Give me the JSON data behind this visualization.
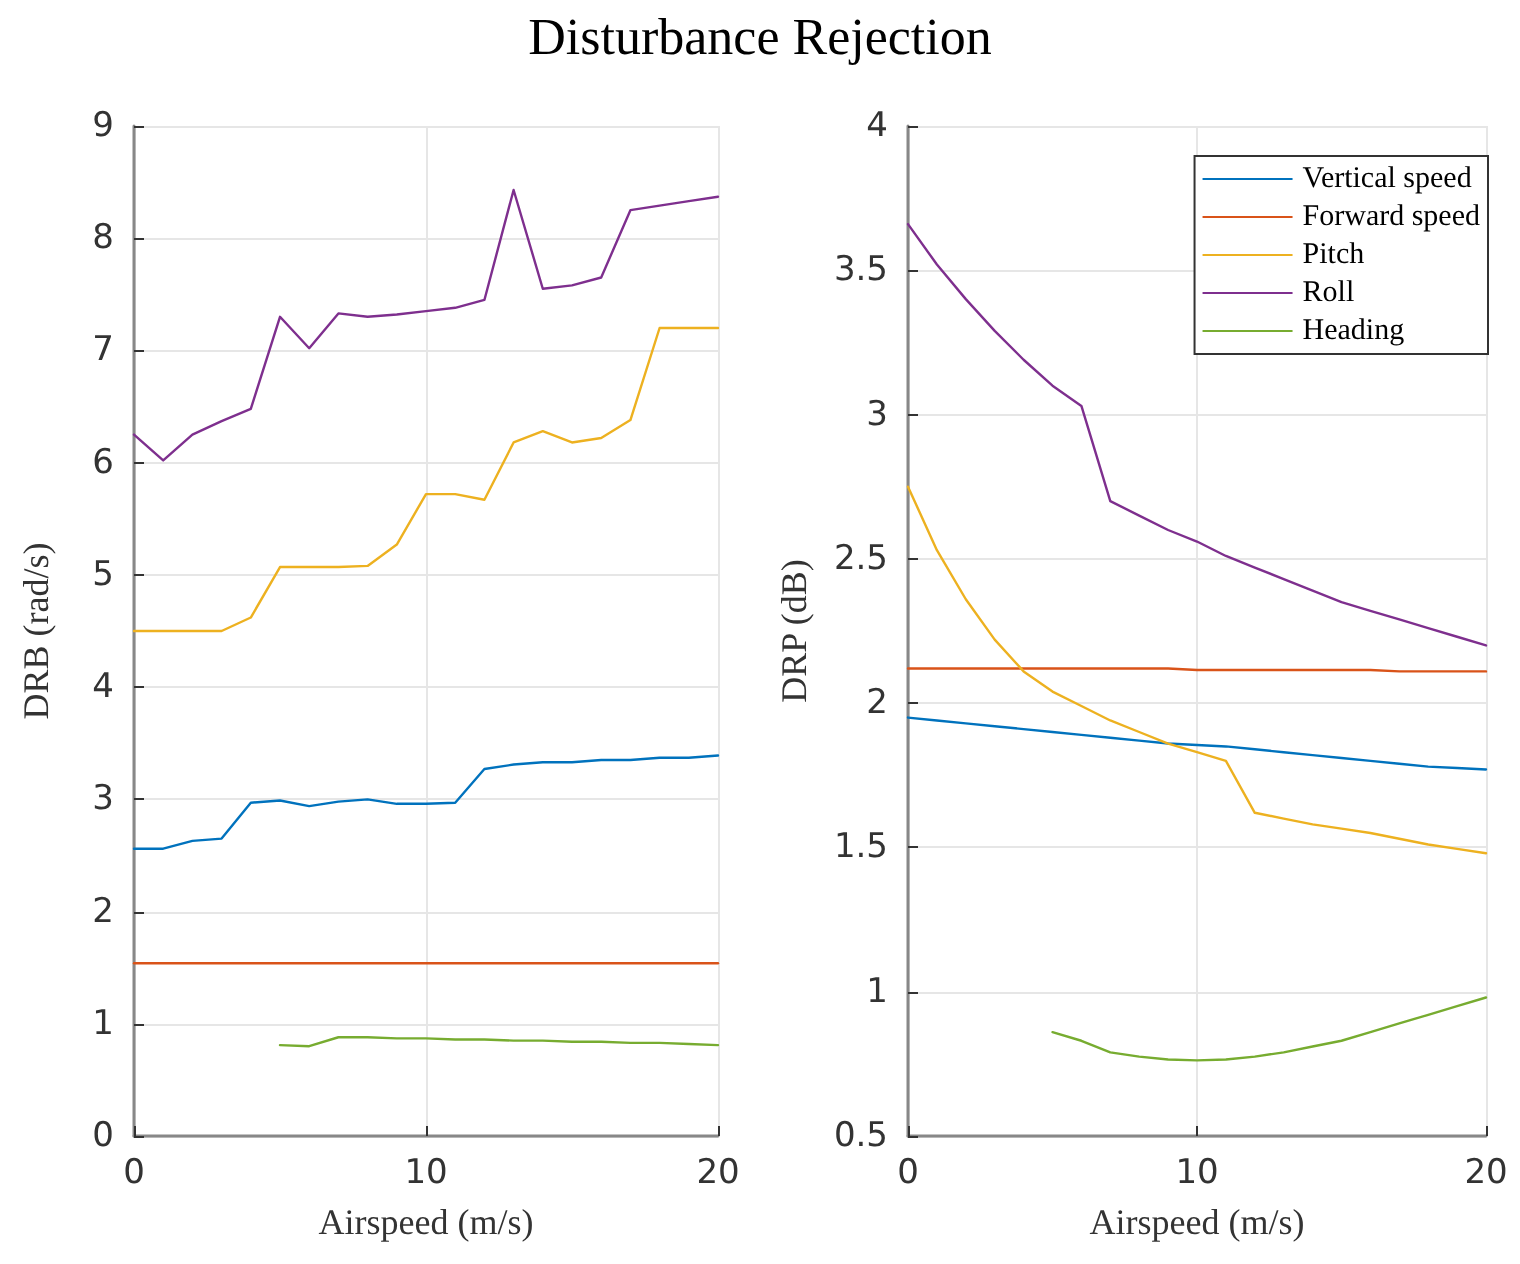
{
  "chart_data": [
    {
      "type": "line",
      "title": "Disturbance Rejection",
      "xlabel": "Airspeed (m/s)",
      "ylabel": "DRB (rad/s)",
      "xlim": [
        0,
        20
      ],
      "xticks": [
        0,
        10,
        20
      ],
      "ylim": [
        0,
        9
      ],
      "yticks": [
        0,
        1,
        2,
        3,
        4,
        5,
        6,
        7,
        8,
        9
      ],
      "grid": true,
      "legend": false,
      "marker": "none",
      "line_style": "solid",
      "x": [
        0,
        1,
        2,
        3,
        4,
        5,
        6,
        7,
        8,
        9,
        10,
        11,
        12,
        13,
        14,
        15,
        16,
        17,
        18,
        19,
        20
      ],
      "series": [
        {
          "color": "#0072bd",
          "values": [
            2.56,
            2.56,
            2.63,
            2.65,
            2.97,
            2.99,
            2.94,
            2.98,
            3.0,
            2.96,
            2.96,
            2.97,
            3.27,
            3.31,
            3.33,
            3.33,
            3.35,
            3.35,
            3.37,
            3.37,
            3.39
          ]
        },
        {
          "color": "#d95319",
          "values": [
            1.54,
            1.54,
            1.54,
            1.54,
            1.54,
            1.54,
            1.54,
            1.54,
            1.54,
            1.54,
            1.54,
            1.54,
            1.54,
            1.54,
            1.54,
            1.54,
            1.54,
            1.54,
            1.54,
            1.54,
            1.54
          ]
        },
        {
          "color": "#edb120",
          "values": [
            4.5,
            4.5,
            4.5,
            4.5,
            4.62,
            5.07,
            5.07,
            5.07,
            5.08,
            5.27,
            5.72,
            5.72,
            5.67,
            6.18,
            6.28,
            6.18,
            6.22,
            6.38,
            7.2,
            7.2,
            7.2
          ]
        },
        {
          "color": "#7e2f8e",
          "values": [
            6.25,
            6.02,
            6.25,
            6.37,
            6.48,
            7.3,
            7.02,
            7.33,
            7.3,
            7.32,
            7.35,
            7.38,
            7.45,
            8.43,
            7.55,
            7.58,
            7.65,
            8.25,
            8.29,
            8.33,
            8.37
          ]
        },
        {
          "color": "#77ac30",
          "values": [
            null,
            null,
            null,
            null,
            null,
            0.81,
            0.8,
            0.88,
            0.88,
            0.87,
            0.87,
            0.86,
            0.86,
            0.85,
            0.85,
            0.84,
            0.84,
            0.83,
            0.83,
            0.82,
            0.81
          ]
        }
      ]
    },
    {
      "type": "line",
      "xlabel": "Airspeed (m/s)",
      "ylabel": "DRP (dB)",
      "xlim": [
        0,
        20
      ],
      "xticks": [
        0,
        10,
        20
      ],
      "ylim": [
        0.5,
        4
      ],
      "yticks": [
        0.5,
        1,
        1.5,
        2,
        2.5,
        3,
        3.5,
        4
      ],
      "grid": true,
      "legend": "top right",
      "marker": "none",
      "line_style": "solid",
      "x": [
        0,
        1,
        2,
        3,
        4,
        5,
        6,
        7,
        8,
        9,
        10,
        11,
        12,
        13,
        14,
        15,
        16,
        17,
        18,
        19,
        20
      ],
      "series": [
        {
          "name": "Vertical speed",
          "color": "#0072bd",
          "values": [
            1.95,
            1.94,
            1.93,
            1.92,
            1.91,
            1.9,
            1.89,
            1.88,
            1.87,
            1.86,
            1.855,
            1.85,
            1.84,
            1.83,
            1.82,
            1.81,
            1.8,
            1.79,
            1.78,
            1.775,
            1.77
          ]
        },
        {
          "name": "Forward speed",
          "color": "#d95319",
          "values": [
            2.12,
            2.12,
            2.12,
            2.12,
            2.12,
            2.12,
            2.12,
            2.12,
            2.12,
            2.12,
            2.115,
            2.115,
            2.115,
            2.115,
            2.115,
            2.115,
            2.115,
            2.11,
            2.11,
            2.11,
            2.11
          ]
        },
        {
          "name": "Pitch",
          "color": "#edb120",
          "values": [
            2.75,
            2.53,
            2.36,
            2.22,
            2.11,
            2.04,
            1.99,
            1.94,
            1.9,
            1.86,
            1.83,
            1.8,
            1.62,
            1.6,
            1.58,
            1.565,
            1.55,
            1.53,
            1.51,
            1.495,
            1.48
          ]
        },
        {
          "name": "Roll",
          "color": "#7e2f8e",
          "values": [
            3.66,
            3.52,
            3.4,
            3.29,
            3.19,
            3.1,
            3.03,
            2.7,
            2.65,
            2.6,
            2.56,
            2.51,
            2.47,
            2.43,
            2.39,
            2.35,
            2.32,
            2.29,
            2.26,
            2.23,
            2.2
          ]
        },
        {
          "name": "Heading",
          "color": "#77ac30",
          "values": [
            null,
            null,
            null,
            null,
            null,
            0.86,
            0.83,
            0.79,
            0.775,
            0.765,
            0.762,
            0.765,
            0.775,
            0.79,
            0.81,
            0.83,
            0.86,
            0.89,
            0.92,
            0.95,
            0.98
          ]
        }
      ]
    }
  ]
}
